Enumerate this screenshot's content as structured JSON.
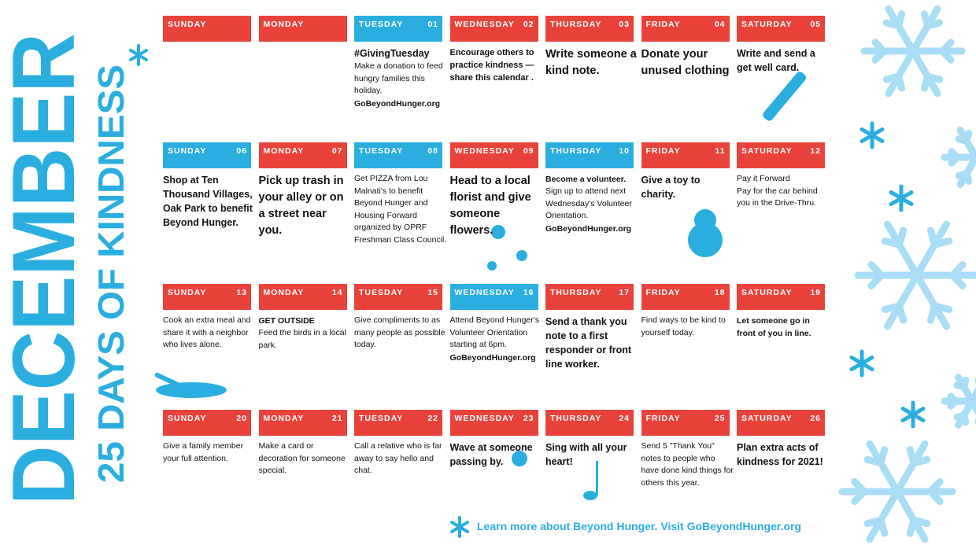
{
  "title": "DECEMBER",
  "subtitle": "25 DAYS OF KINDNESS",
  "calendar": {
    "cells": [
      {
        "day": "SUNDAY",
        "text": []
      },
      {
        "day": "MONDAY",
        "text": []
      },
      {
        "day": "TUESDAY",
        "date": "01",
        "text": [
          "#GivingTuesday",
          "Make a donation to feed hungry families this holiday.",
          "GoBeyondHunger.org"
        ]
      },
      {
        "day": "WEDNESDAY",
        "date": "02",
        "text": [
          "Encourage others to practice kindness —share this calendar ."
        ]
      },
      {
        "day": "THURSDAY",
        "date": "03",
        "text": [
          "Write someone a kind note."
        ]
      },
      {
        "day": "FRIDAY",
        "date": "04",
        "text": [
          "Donate your unused clothing"
        ]
      },
      {
        "day": "SATURDAY",
        "date": "05",
        "text": [
          "Write and send a get well card."
        ]
      },
      {
        "day": "SUNDAY",
        "date": "06",
        "text": [
          "Shop at Ten Thousand Villages, Oak Park to benefit Beyond Hunger."
        ]
      },
      {
        "day": "MONDAY",
        "date": "07",
        "text": [
          "Pick up trash in your alley or on a street near you."
        ]
      },
      {
        "day": "TUESDAY",
        "date": "08",
        "text": [
          "Get PIZZA from Lou Malnati's to benefit Beyond Hunger and Housing Forward organized by OPRF Freshman Class Council."
        ]
      },
      {
        "day": "WEDNESDAY",
        "date": "09",
        "text": [
          "Head to a local florist and give someone flowers."
        ]
      },
      {
        "day": "THURSDAY",
        "date": "10",
        "text": [
          "Become a volunteer.",
          "Sign up to attend next Wednesday's Volunteer Orientation.",
          "GoBeyondHunger.org"
        ]
      },
      {
        "day": "FRIDAY",
        "date": "11",
        "text": [
          "Give a toy to charity."
        ]
      },
      {
        "day": "SATURDAY",
        "date": "12",
        "text": [
          "Pay it Forward",
          "Pay for the car behind you in the Drive-Thru."
        ]
      },
      {
        "day": "SUNDAY",
        "date": "13",
        "text": [
          "Cook an extra meal and share it with a neighbor who lives alone."
        ]
      },
      {
        "day": "MONDAY",
        "date": "14",
        "text": [
          "GET OUTSIDE",
          "Feed the birds in a local park."
        ]
      },
      {
        "day": "TUESDAY",
        "date": "15",
        "text": [
          "Give compliments to as many people as possible today."
        ]
      },
      {
        "day": "WEDNESDAY",
        "date": "16",
        "text": [
          "Attend Beyond Hunger's Volunteer Orientation starting at 6pm.",
          "GoBeyondHunger.org"
        ]
      },
      {
        "day": "THURSDAY",
        "date": "17",
        "text": [
          "Send a thank you note to a first responder or front line worker."
        ]
      },
      {
        "day": "FRIDAY",
        "date": "18",
        "text": [
          "Find ways to be kind to yourself today."
        ]
      },
      {
        "day": "SATURDAY",
        "date": "19",
        "text": [
          "Let someone go in front of you in line."
        ]
      },
      {
        "day": "SUNDAY",
        "date": "20",
        "text": [
          "Give a family member your full attention."
        ]
      },
      {
        "day": "MONDAY",
        "date": "21",
        "text": [
          "Make a card or decoration for someone special."
        ]
      },
      {
        "day": "TUESDAY",
        "date": "22",
        "text": [
          "Call a relative who is far away to say hello and chat."
        ]
      },
      {
        "day": "WEDNESDAY",
        "date": "23",
        "text": [
          "Wave at someone passing by."
        ]
      },
      {
        "day": "THURSDAY",
        "date": "24",
        "text": [
          "Sing with all your heart!"
        ]
      },
      {
        "day": "FRIDAY",
        "date": "25",
        "text": [
          "Send 5 \"Thank You\" notes to people who have done kind things for others this year."
        ]
      },
      {
        "day": "SATURDAY",
        "date": "26",
        "text": [
          "Plan extra acts of kindness for 2021!"
        ]
      }
    ]
  },
  "footer": "Learn more about Beyond Hunger. Visit GoBeyondHunger.org"
}
